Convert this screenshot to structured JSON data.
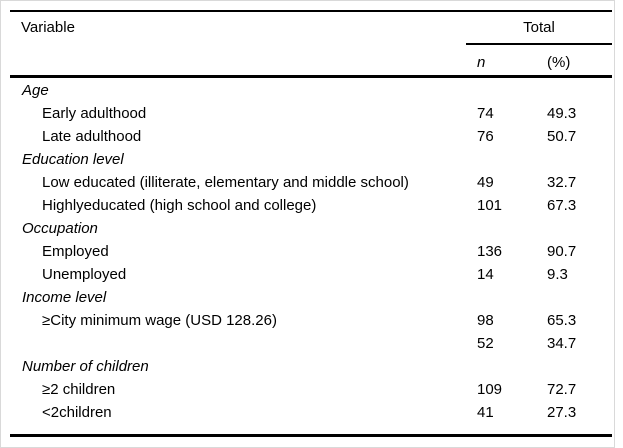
{
  "panel": {
    "background": "#ffffff",
    "border_color": "#d9d9d9",
    "rule_color": "#000000",
    "text_color": "#000000"
  },
  "table": {
    "header": {
      "variable": "Variable",
      "total": "Total",
      "n": "n",
      "pct": "(%)"
    },
    "rows": [
      {
        "type": "category",
        "label": "Age",
        "n": "",
        "pct": ""
      },
      {
        "type": "item",
        "label": "Early adulthood",
        "n": "74",
        "pct": "49.3"
      },
      {
        "type": "item",
        "label": "Late adulthood",
        "n": "76",
        "pct": "50.7"
      },
      {
        "type": "category",
        "label": "Education level",
        "n": "",
        "pct": ""
      },
      {
        "type": "item",
        "label": "Low educated (illiterate, elementary and middle school)",
        "n": "49",
        "pct": "32.7"
      },
      {
        "type": "item",
        "label": "Highlyeducated (high school and college)",
        "n": "101",
        "pct": "67.3"
      },
      {
        "type": "category",
        "label": "Occupation",
        "n": "",
        "pct": ""
      },
      {
        "type": "item",
        "label": "Employed",
        "n": "136",
        "pct": "90.7"
      },
      {
        "type": "item",
        "label": "Unemployed",
        "n": "14",
        "pct": "9.3"
      },
      {
        "type": "category",
        "label": "Income level",
        "n": "",
        "pct": ""
      },
      {
        "type": "item",
        "label": "≥City minimum wage (USD 128.26)",
        "n": "98",
        "pct": "65.3"
      },
      {
        "type": "item",
        "label": "",
        "n": "52",
        "pct": "34.7"
      },
      {
        "type": "category",
        "label": "Number of children",
        "n": "",
        "pct": ""
      },
      {
        "type": "item",
        "label": "≥2 children",
        "n": "109",
        "pct": "72.7"
      },
      {
        "type": "item",
        "label": "<2children",
        "n": "41",
        "pct": "27.3"
      }
    ]
  }
}
